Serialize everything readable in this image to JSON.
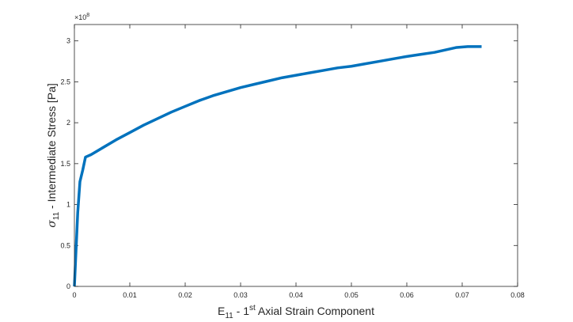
{
  "chart_data": {
    "type": "line",
    "title": "",
    "xlabel": {
      "base": "E",
      "subscript": "11",
      "mid": " - 1",
      "superscript": "st",
      "rest": " Axial Strain Component"
    },
    "ylabel": {
      "base": "σ",
      "subscript": "11",
      "rest": " - Intermediate Stress [Pa]"
    },
    "xlim": [
      0,
      0.08
    ],
    "ylim": [
      0,
      320000000
    ],
    "xticks": [
      0,
      0.01,
      0.02,
      0.03,
      0.04,
      0.05,
      0.06,
      0.07,
      0.08
    ],
    "xtick_labels": [
      "0",
      "0.01",
      "0.02",
      "0.03",
      "0.04",
      "0.05",
      "0.06",
      "0.07",
      "0.08"
    ],
    "yticks": [
      0,
      50000000,
      100000000,
      150000000,
      200000000,
      250000000,
      300000000
    ],
    "ytick_labels": [
      "0",
      "0.5",
      "1",
      "1.5",
      "2",
      "2.5",
      "3"
    ],
    "y_exponent_label": "×10",
    "y_exponent_power": "8",
    "grid": false,
    "box": true,
    "series_color": "#0072BD",
    "series": [
      {
        "x": [
          0,
          0.0003,
          0.0006,
          0.001,
          0.0015,
          0.002,
          0.003,
          0.005,
          0.0075,
          0.01,
          0.0125,
          0.015,
          0.0175,
          0.02,
          0.0225,
          0.025,
          0.0275,
          0.03,
          0.0325,
          0.035,
          0.0375,
          0.04,
          0.0425,
          0.045,
          0.0475,
          0.05,
          0.0525,
          0.055,
          0.0575,
          0.06,
          0.0625,
          0.065,
          0.067,
          0.069,
          0.071,
          0.0725,
          0.0735
        ],
        "values": [
          0,
          45000000,
          90000000,
          128000000,
          142000000,
          158000000,
          161000000,
          169000000,
          179000000,
          188000000,
          197000000,
          205000000,
          213000000,
          220000000,
          227000000,
          233000000,
          238000000,
          243000000,
          247000000,
          251000000,
          255000000,
          258000000,
          261000000,
          264000000,
          267000000,
          269000000,
          272000000,
          275000000,
          278000000,
          281000000,
          283500000,
          286000000,
          289000000,
          292000000,
          293000000,
          293000000,
          293000000
        ]
      }
    ]
  }
}
